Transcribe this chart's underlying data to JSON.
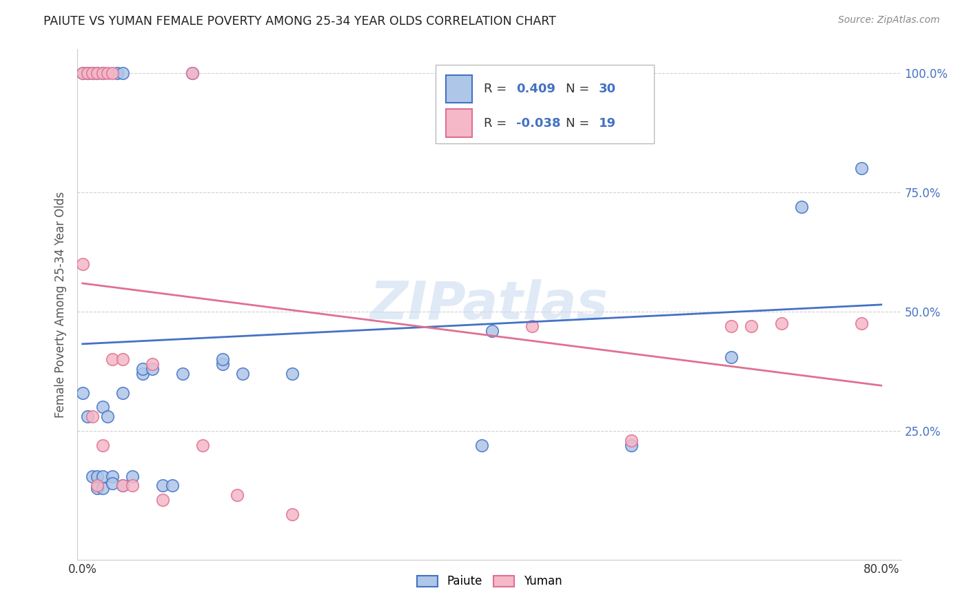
{
  "title": "PAIUTE VS YUMAN FEMALE POVERTY AMONG 25-34 YEAR OLDS CORRELATION CHART",
  "source": "Source: ZipAtlas.com",
  "ylabel": "Female Poverty Among 25-34 Year Olds",
  "xlim": [
    -0.005,
    0.82
  ],
  "ylim": [
    -0.02,
    1.05
  ],
  "xtick_labels": [
    "0.0%",
    "",
    "",
    "",
    "",
    "",
    "",
    "",
    "80.0%"
  ],
  "xtick_vals": [
    0.0,
    0.1,
    0.2,
    0.3,
    0.4,
    0.5,
    0.6,
    0.7,
    0.8
  ],
  "ytick_labels": [
    "25.0%",
    "50.0%",
    "75.0%",
    "100.0%"
  ],
  "ytick_vals": [
    0.25,
    0.5,
    0.75,
    1.0
  ],
  "paiute_R": 0.409,
  "paiute_N": 30,
  "yuman_R": -0.038,
  "yuman_N": 19,
  "paiute_color": "#aec6e8",
  "yuman_color": "#f4b8c8",
  "paiute_line_color": "#4472c4",
  "yuman_line_color": "#e07090",
  "paiute_x": [
    0.0,
    0.005,
    0.01,
    0.015,
    0.015,
    0.02,
    0.02,
    0.02,
    0.025,
    0.03,
    0.03,
    0.04,
    0.04,
    0.05,
    0.06,
    0.06,
    0.07,
    0.08,
    0.09,
    0.1,
    0.14,
    0.14,
    0.16,
    0.21,
    0.4,
    0.41,
    0.55,
    0.65,
    0.72,
    0.78
  ],
  "paiute_y": [
    0.33,
    0.28,
    0.155,
    0.155,
    0.13,
    0.13,
    0.3,
    0.155,
    0.28,
    0.155,
    0.14,
    0.135,
    0.33,
    0.155,
    0.37,
    0.38,
    0.38,
    0.135,
    0.135,
    0.37,
    0.39,
    0.4,
    0.37,
    0.37,
    0.22,
    0.46,
    0.22,
    0.405,
    0.72,
    0.8
  ],
  "yuman_x": [
    0.0,
    0.01,
    0.015,
    0.02,
    0.03,
    0.04,
    0.04,
    0.05,
    0.07,
    0.08,
    0.12,
    0.155,
    0.21,
    0.45,
    0.55,
    0.65,
    0.67,
    0.7,
    0.78
  ],
  "yuman_y": [
    0.6,
    0.28,
    0.135,
    0.22,
    0.4,
    0.4,
    0.135,
    0.135,
    0.39,
    0.105,
    0.22,
    0.115,
    0.075,
    0.47,
    0.23,
    0.47,
    0.47,
    0.475,
    0.475
  ],
  "paiute_top_x": [
    0.0,
    0.005,
    0.01,
    0.015,
    0.02,
    0.035,
    0.04,
    0.11
  ],
  "paiute_top_y": [
    1.0,
    1.0,
    1.0,
    1.0,
    1.0,
    1.0,
    1.0,
    1.0
  ],
  "yuman_top_x": [
    0.0,
    0.005,
    0.01,
    0.015,
    0.02,
    0.025,
    0.03,
    0.11
  ],
  "yuman_top_y": [
    1.0,
    1.0,
    1.0,
    1.0,
    1.0,
    1.0,
    1.0,
    1.0
  ],
  "watermark": "ZIPatlas",
  "background_color": "#ffffff",
  "grid_color": "#d0d0d0"
}
